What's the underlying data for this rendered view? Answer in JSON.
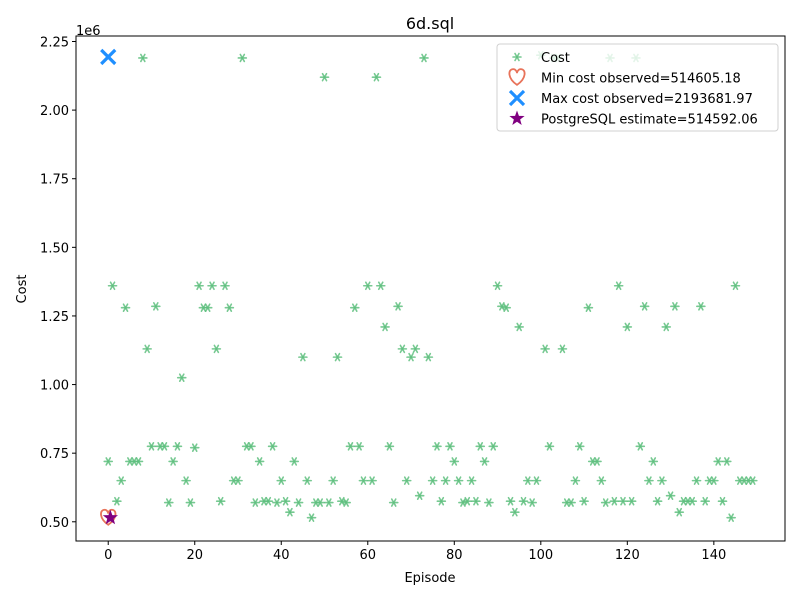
{
  "chart_data": {
    "type": "scatter",
    "title": "6d.sql",
    "xlabel": "Episode",
    "ylabel": "Cost",
    "scale_label": "1e6",
    "xlim": [
      -7.45,
      156.45
    ],
    "ylim": [
      0.43,
      2.27
    ],
    "y_scale_factor": 1000000,
    "x_ticks": [
      0,
      20,
      40,
      60,
      80,
      100,
      120,
      140
    ],
    "y_ticks": [
      0.5,
      0.75,
      1.0,
      1.25,
      1.5,
      1.75,
      2.0,
      2.25
    ],
    "y_tick_labels": [
      "0.50",
      "0.75",
      "1.00",
      "1.25",
      "1.50",
      "1.75",
      "2.00",
      "2.25"
    ],
    "grid": false,
    "legend_position": "top-right",
    "colors": {
      "cost": "#5fbf7f",
      "min": "#e8735a",
      "max": "#1f8fff",
      "estimate": "#800080"
    },
    "series": [
      {
        "name": "Cost",
        "marker": "asterisk",
        "points": [
          [
            0,
            0.72
          ],
          [
            1,
            1.36
          ],
          [
            2,
            0.575
          ],
          [
            3,
            0.65
          ],
          [
            4,
            1.28
          ],
          [
            5,
            0.72
          ],
          [
            6,
            0.72
          ],
          [
            7,
            0.72
          ],
          [
            8,
            2.19
          ],
          [
            9,
            1.13
          ],
          [
            10,
            0.775
          ],
          [
            11,
            1.285
          ],
          [
            12,
            0.775
          ],
          [
            13,
            0.775
          ],
          [
            14,
            0.57
          ],
          [
            15,
            0.72
          ],
          [
            16,
            0.775
          ],
          [
            17,
            1.025
          ],
          [
            18,
            0.65
          ],
          [
            19,
            0.57
          ],
          [
            20,
            0.77
          ],
          [
            21,
            1.36
          ],
          [
            22,
            1.28
          ],
          [
            23,
            1.28
          ],
          [
            24,
            1.36
          ],
          [
            25,
            1.13
          ],
          [
            26,
            0.575
          ],
          [
            27,
            1.36
          ],
          [
            28,
            1.28
          ],
          [
            29,
            0.65
          ],
          [
            30,
            0.65
          ],
          [
            31,
            2.19
          ],
          [
            32,
            0.775
          ],
          [
            33,
            0.775
          ],
          [
            34,
            0.57
          ],
          [
            35,
            0.72
          ],
          [
            36,
            0.575
          ],
          [
            37,
            0.575
          ],
          [
            38,
            0.775
          ],
          [
            39,
            0.57
          ],
          [
            40,
            0.65
          ],
          [
            41,
            0.575
          ],
          [
            42,
            0.535
          ],
          [
            43,
            0.72
          ],
          [
            44,
            0.57
          ],
          [
            45,
            1.1
          ],
          [
            46,
            0.65
          ],
          [
            47,
            0.515
          ],
          [
            48,
            0.57
          ],
          [
            49,
            0.57
          ],
          [
            50,
            2.12
          ],
          [
            51,
            0.57
          ],
          [
            52,
            0.65
          ],
          [
            53,
            1.1
          ],
          [
            54,
            0.575
          ],
          [
            55,
            0.57
          ],
          [
            56,
            0.775
          ],
          [
            57,
            1.28
          ],
          [
            58,
            0.775
          ],
          [
            59,
            0.65
          ],
          [
            60,
            1.36
          ],
          [
            61,
            0.65
          ],
          [
            62,
            2.12
          ],
          [
            63,
            1.36
          ],
          [
            64,
            1.21
          ],
          [
            65,
            0.775
          ],
          [
            66,
            0.57
          ],
          [
            67,
            1.285
          ],
          [
            68,
            1.13
          ],
          [
            69,
            0.65
          ],
          [
            70,
            1.1
          ],
          [
            71,
            1.13
          ],
          [
            72,
            0.595
          ],
          [
            73,
            2.19
          ],
          [
            74,
            1.1
          ],
          [
            75,
            0.65
          ],
          [
            76,
            0.775
          ],
          [
            77,
            0.575
          ],
          [
            78,
            0.65
          ],
          [
            79,
            0.775
          ],
          [
            80,
            0.72
          ],
          [
            81,
            0.65
          ],
          [
            82,
            0.57
          ],
          [
            83,
            0.575
          ],
          [
            84,
            0.65
          ],
          [
            85,
            0.575
          ],
          [
            86,
            0.775
          ],
          [
            87,
            0.72
          ],
          [
            88,
            0.57
          ],
          [
            89,
            0.775
          ],
          [
            90,
            1.36
          ],
          [
            91,
            1.285
          ],
          [
            92,
            1.28
          ],
          [
            93,
            0.575
          ],
          [
            94,
            0.535
          ],
          [
            95,
            1.21
          ],
          [
            96,
            0.575
          ],
          [
            97,
            0.65
          ],
          [
            98,
            0.57
          ],
          [
            99,
            0.65
          ],
          [
            100,
            2.2
          ],
          [
            101,
            1.13
          ],
          [
            102,
            0.775
          ],
          [
            103,
            2.19
          ],
          [
            104,
            2.19
          ],
          [
            105,
            1.13
          ],
          [
            106,
            0.57
          ],
          [
            107,
            0.57
          ],
          [
            108,
            0.65
          ],
          [
            109,
            0.775
          ],
          [
            110,
            0.575
          ],
          [
            111,
            1.28
          ],
          [
            112,
            0.72
          ],
          [
            113,
            0.72
          ],
          [
            114,
            0.65
          ],
          [
            115,
            0.57
          ],
          [
            116,
            2.19
          ],
          [
            117,
            0.575
          ],
          [
            118,
            1.36
          ],
          [
            119,
            0.575
          ],
          [
            120,
            1.21
          ],
          [
            121,
            0.575
          ],
          [
            122,
            2.19
          ],
          [
            123,
            0.775
          ],
          [
            124,
            1.285
          ],
          [
            125,
            0.65
          ],
          [
            126,
            0.72
          ],
          [
            127,
            0.575
          ],
          [
            128,
            0.65
          ],
          [
            129,
            1.21
          ],
          [
            130,
            0.595
          ],
          [
            131,
            1.285
          ],
          [
            132,
            0.535
          ],
          [
            133,
            0.575
          ],
          [
            134,
            0.575
          ],
          [
            135,
            0.575
          ],
          [
            136,
            0.65
          ],
          [
            137,
            1.285
          ],
          [
            138,
            0.575
          ],
          [
            139,
            0.65
          ],
          [
            140,
            0.65
          ],
          [
            141,
            0.72
          ],
          [
            142,
            0.575
          ],
          [
            143,
            0.72
          ],
          [
            144,
            0.515
          ],
          [
            145,
            1.36
          ],
          [
            146,
            0.65
          ],
          [
            147,
            0.65
          ],
          [
            148,
            0.65
          ],
          [
            149,
            0.65
          ]
        ]
      },
      {
        "name": "Min cost observed=514605.18",
        "marker": "heart",
        "points": [
          [
            0,
            0.5146
          ]
        ]
      },
      {
        "name": "Max cost observed=2193681.97",
        "marker": "x",
        "points": [
          [
            0,
            2.1937
          ]
        ]
      },
      {
        "name": "PostgreSQL estimate=514592.06",
        "marker": "star",
        "points": [
          [
            0.5,
            0.5146
          ]
        ]
      }
    ]
  }
}
